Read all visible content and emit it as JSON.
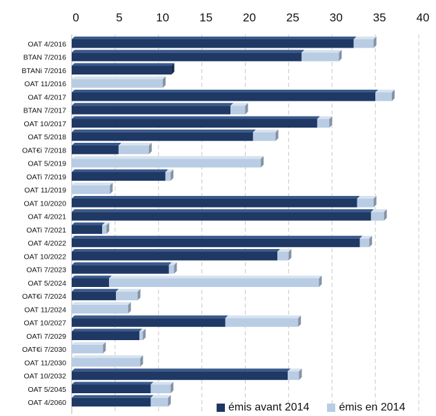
{
  "chart_data": {
    "type": "bar",
    "orientation": "horizontal",
    "stacked": true,
    "title": "",
    "xlabel": "",
    "ylabel": "",
    "xlim": [
      0,
      40
    ],
    "xticks": [
      0,
      5,
      10,
      15,
      20,
      25,
      30,
      35,
      40
    ],
    "grid": true,
    "legend_position": "bottom-right",
    "categories": [
      "OAT 4/2016",
      "BTAN 7/2016",
      "BTANi 7/2016",
      "OAT 11/2016",
      "OAT 4/2017",
      "BTAN 7/2017",
      "OAT 10/2017",
      "OAT 5/2018",
      "OAT€i 7/2018",
      "OAT 5/2019",
      "OATi 7/2019",
      "OAT 11/2019",
      "OAT 10/2020",
      "OAT 4/2021",
      "OATi 7/2021",
      "OAT 4/2022",
      "OAT 10/2022",
      "OATi 7/2023",
      "OAT 5/2024",
      "OAT€i 7/2024",
      "OAT 11/2024",
      "OAT 10/2027",
      "OATi 7/2029",
      "OAT€i 7/2030",
      "OAT 11/2030",
      "OAT 10/2032",
      "OAT 5/2045",
      "OAT 4/2060"
    ],
    "series": [
      {
        "name": "émis avant 2014",
        "color": "#1F3864",
        "values": [
          32.5,
          26.5,
          11.5,
          0,
          35,
          18.3,
          28.3,
          20.9,
          5.4,
          0,
          10.8,
          0,
          32.9,
          34.5,
          3.5,
          33.2,
          23.7,
          11.2,
          4.3,
          5.1,
          0,
          17.7,
          7.8,
          0,
          0,
          24.9,
          9.1,
          9.1
        ]
      },
      {
        "name": "émis en 2014",
        "color": "#B8CCE4",
        "values": [
          2.3,
          4.3,
          0,
          10.5,
          1.9,
          1.7,
          1.4,
          2.6,
          3.5,
          21.8,
          0.6,
          4.4,
          1.9,
          1.5,
          0.5,
          1.1,
          1.3,
          0.6,
          24.2,
          2.5,
          6.5,
          8.4,
          0.4,
          3.6,
          7.9,
          1.3,
          2.3,
          2.0
        ]
      }
    ]
  }
}
